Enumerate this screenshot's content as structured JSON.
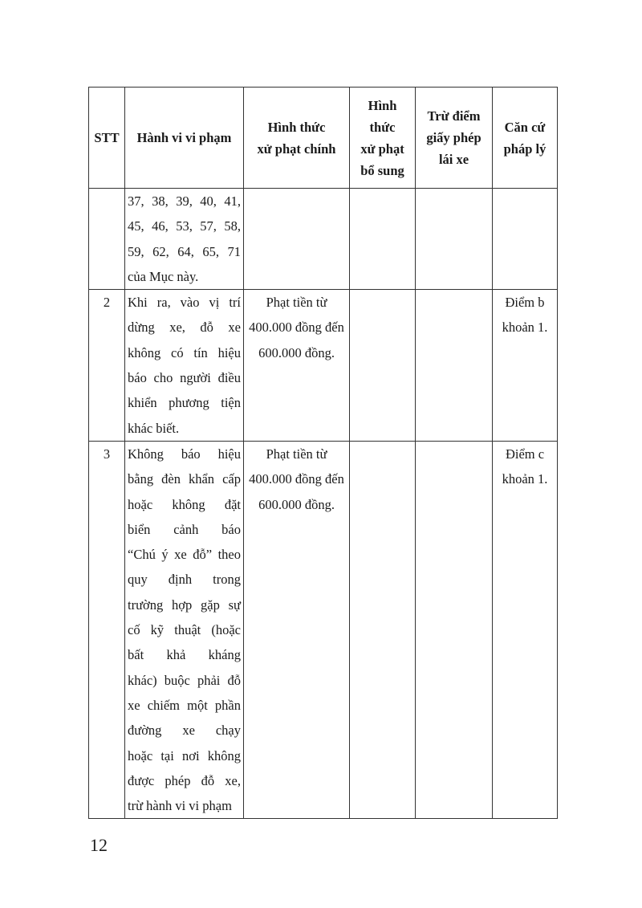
{
  "table": {
    "headers": [
      "STT",
      "Hành vi vi phạm",
      "Hình thức xử phạt chính",
      "Hình thức xử phạt bổ sung",
      "Trừ điểm giấy phép lái xe",
      "Căn cứ pháp lý"
    ],
    "header_lines": [
      [
        "STT"
      ],
      [
        "Hành vi vi phạm"
      ],
      [
        "Hình thức",
        "xử phạt chính"
      ],
      [
        "Hình",
        "thức",
        "xử phạt",
        "bổ sung"
      ],
      [
        "Trừ điểm",
        "giấy phép",
        "lái xe"
      ],
      [
        "Căn cứ",
        "pháp lý"
      ]
    ],
    "rows": [
      {
        "stt": "",
        "violation": [
          "37, 38, 39, 40, 41,",
          "45, 46, 53, 57, 58,",
          "59, 62, 64, 65, 71",
          "của Mục này."
        ],
        "penalty": [],
        "additional": "",
        "points": "",
        "legal": []
      },
      {
        "stt": "2",
        "violation": [
          "Khi ra, vào vị trí",
          "dừng xe, đỗ xe",
          "không có tín hiệu",
          "báo cho người điều",
          "khiển phương tiện",
          "khác biết."
        ],
        "penalty": [
          "Phạt tiền từ",
          "400.000 đồng đến",
          "600.000 đồng."
        ],
        "additional": "",
        "points": "",
        "legal": [
          "Điểm b",
          "khoản 1."
        ]
      },
      {
        "stt": "3",
        "violation": [
          "Không báo hiệu",
          "bằng đèn khẩn cấp",
          "hoặc không đặt",
          "biển cảnh báo",
          "“Chú ý xe đỗ” theo",
          "quy định trong",
          "trường hợp gặp sự",
          "cố kỹ thuật (hoặc",
          "bất khả kháng",
          "khác) buộc phải đỗ",
          "xe chiếm một phần",
          "đường xe chạy",
          "hoặc tại nơi không",
          "được phép đỗ xe,",
          "trừ hành vi vi phạm"
        ],
        "penalty": [
          "Phạt tiền từ",
          "400.000 đồng đến",
          "600.000 đồng."
        ],
        "additional": "",
        "points": "",
        "legal": [
          "Điểm c",
          "khoản 1."
        ]
      }
    ]
  },
  "page_number": "12"
}
